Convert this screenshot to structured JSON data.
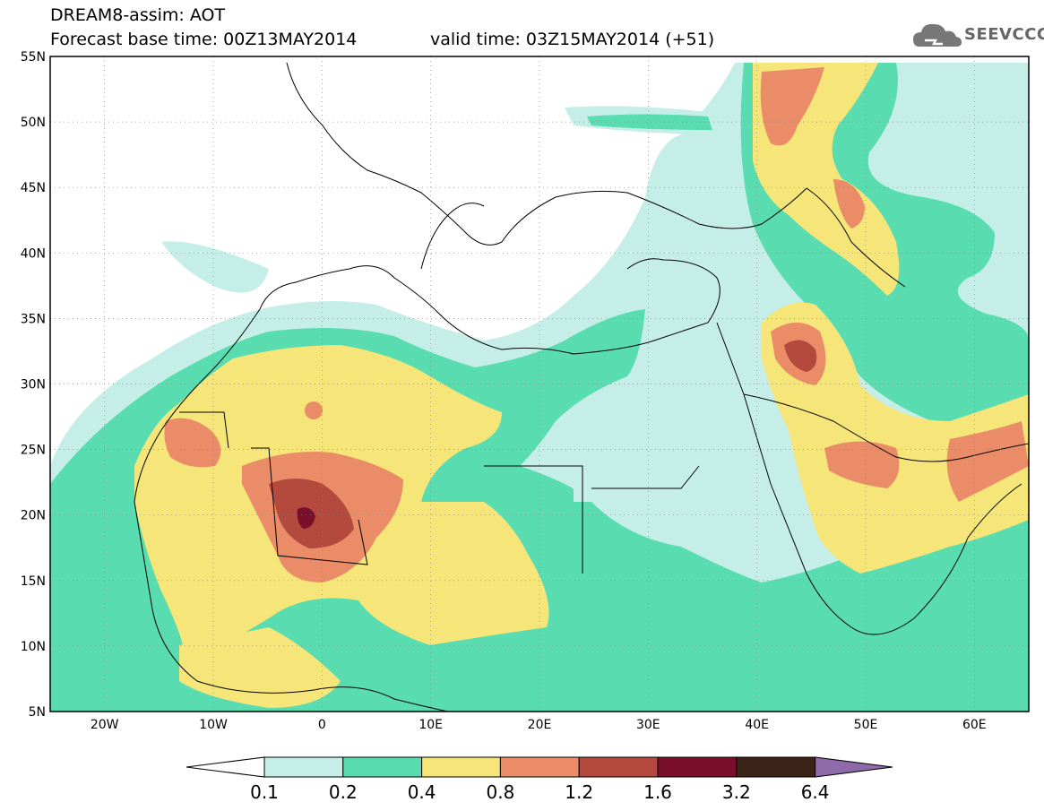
{
  "header": {
    "title": "DREAM8-assim: AOT",
    "forecast": "Forecast base time: 00Z13MAY2014",
    "valid": "valid time: 03Z15MAY2014 (+51)"
  },
  "logo": {
    "text": "SEEVCCC",
    "icon": "cloud-logo-icon"
  },
  "map": {
    "lat_labels": [
      "55N",
      "50N",
      "45N",
      "40N",
      "35N",
      "30N",
      "25N",
      "20N",
      "15N",
      "10N",
      "5N"
    ],
    "lon_labels": [
      "20W",
      "10W",
      "0",
      "10E",
      "20E",
      "30E",
      "40E",
      "50E",
      "60E"
    ],
    "lat_range": [
      5,
      55
    ],
    "lon_range": [
      -25,
      65
    ],
    "grid": "dotted"
  },
  "colorbar": {
    "labels": [
      "0.1",
      "0.2",
      "0.4",
      "0.8",
      "1.2",
      "1.6",
      "3.2",
      "6.4"
    ],
    "colors": [
      "#ffffff",
      "#c6eee8",
      "#58dcb0",
      "#f6e579",
      "#e98c67",
      "#b4493e",
      "#7a0f2b",
      "#3a2217",
      "#8f6aa8"
    ]
  }
}
